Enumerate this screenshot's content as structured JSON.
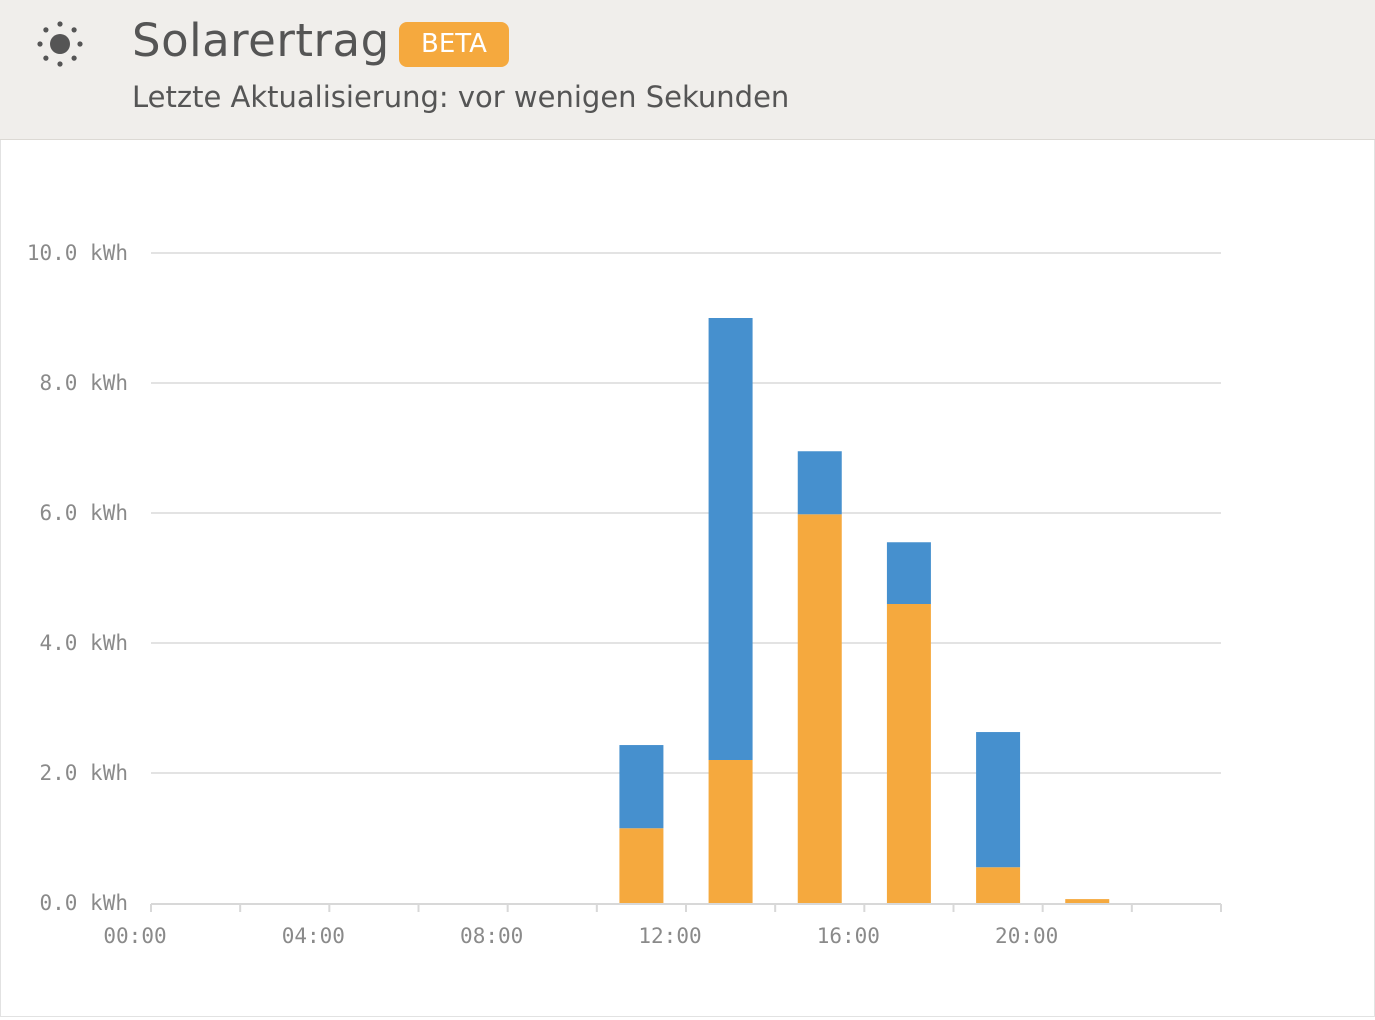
{
  "header": {
    "icon": "sun-icon",
    "title": "Solarertrag",
    "badge": "BETA",
    "subtitle": "Letzte Aktualisierung: vor wenigen Sekunden"
  },
  "colors": {
    "header_bg": "#f0eeeb",
    "badge": "#f5a93e",
    "series_orange": "#f5a93e",
    "series_blue": "#4690ce",
    "grid": "#e3e3e3",
    "label": "#8a8a8a"
  },
  "chart_data": {
    "type": "bar",
    "stacked": true,
    "x_ticks": [
      "00:00",
      "04:00",
      "08:00",
      "12:00",
      "16:00",
      "20:00"
    ],
    "y_ticks": [
      "0.0 kWh",
      "2.0 kWh",
      "4.0 kWh",
      "6.0 kWh",
      "8.0 kWh",
      "10.0 kWh"
    ],
    "y_unit": "kWh",
    "ylim": [
      0,
      10
    ],
    "xlim_hours": [
      0,
      24
    ],
    "categories": [
      "11:00",
      "13:00",
      "15:00",
      "17:00",
      "19:00",
      "21:00"
    ],
    "x_hours": [
      11,
      13,
      15,
      17,
      19,
      21
    ],
    "series": [
      {
        "color": "#f5a93e",
        "values": [
          1.15,
          2.2,
          5.98,
          4.6,
          0.55,
          0.06
        ]
      },
      {
        "color": "#4690ce",
        "values": [
          1.28,
          6.8,
          0.97,
          0.95,
          2.08,
          0.0
        ]
      }
    ],
    "grid": true,
    "legend": "none"
  }
}
